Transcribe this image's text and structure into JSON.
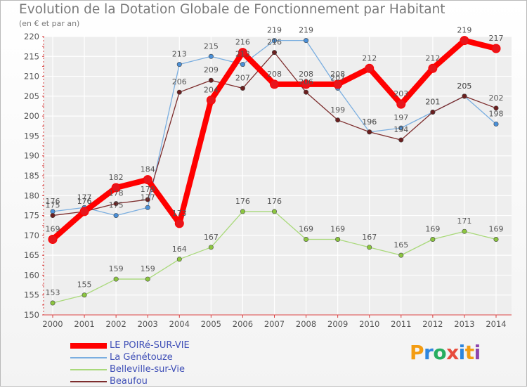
{
  "title": "Evolution de la Dotation Globale de Fonctionnement par Habitant",
  "subtitle": "(en € et par an)",
  "logo": "Proxiti",
  "chart_data": {
    "type": "line",
    "title": "Evolution de la Dotation Globale de Fonctionnement par Habitant",
    "ylabel": "(en € et par an)",
    "xlabel": "",
    "ylim": [
      150,
      220
    ],
    "yticks": [
      150,
      155,
      160,
      165,
      170,
      175,
      180,
      185,
      190,
      195,
      200,
      205,
      210,
      215,
      220
    ],
    "x": [
      "2000",
      "2001",
      "2002",
      "2003",
      "2004",
      "2005",
      "2006",
      "2007",
      "2008",
      "2009",
      "2010",
      "2011",
      "2012",
      "2013",
      "2014"
    ],
    "grid": true,
    "legend_position": "bottom-left",
    "series": [
      {
        "name": "LE POIRé-SUR-VIE",
        "color": "#ff0000",
        "marker": "#e8151b",
        "values": [
          169,
          176,
          182,
          184,
          173,
          204,
          216,
          208,
          208,
          208,
          212,
          203,
          212,
          219,
          217
        ]
      },
      {
        "name": "La Génétouze",
        "color": "#7aaee0",
        "marker": "#4a90d9",
        "values": [
          176,
          177,
          175,
          177,
          213,
          215,
          213,
          219,
          219,
          207,
          196,
          197,
          201,
          205,
          198
        ]
      },
      {
        "name": "Belleville-sur-Vie",
        "color": "#a9d97a",
        "marker": "#8cc63f",
        "values": [
          153,
          155,
          159,
          159,
          164,
          167,
          176,
          176,
          169,
          169,
          167,
          165,
          169,
          171,
          169
        ]
      },
      {
        "name": "Beaufou",
        "color": "#7d2d2d",
        "marker": "#6b1f1f",
        "values": [
          175,
          176,
          178,
          179,
          206,
          209,
          207,
          216,
          206,
          199,
          196,
          194,
          201,
          205,
          202
        ]
      }
    ]
  }
}
